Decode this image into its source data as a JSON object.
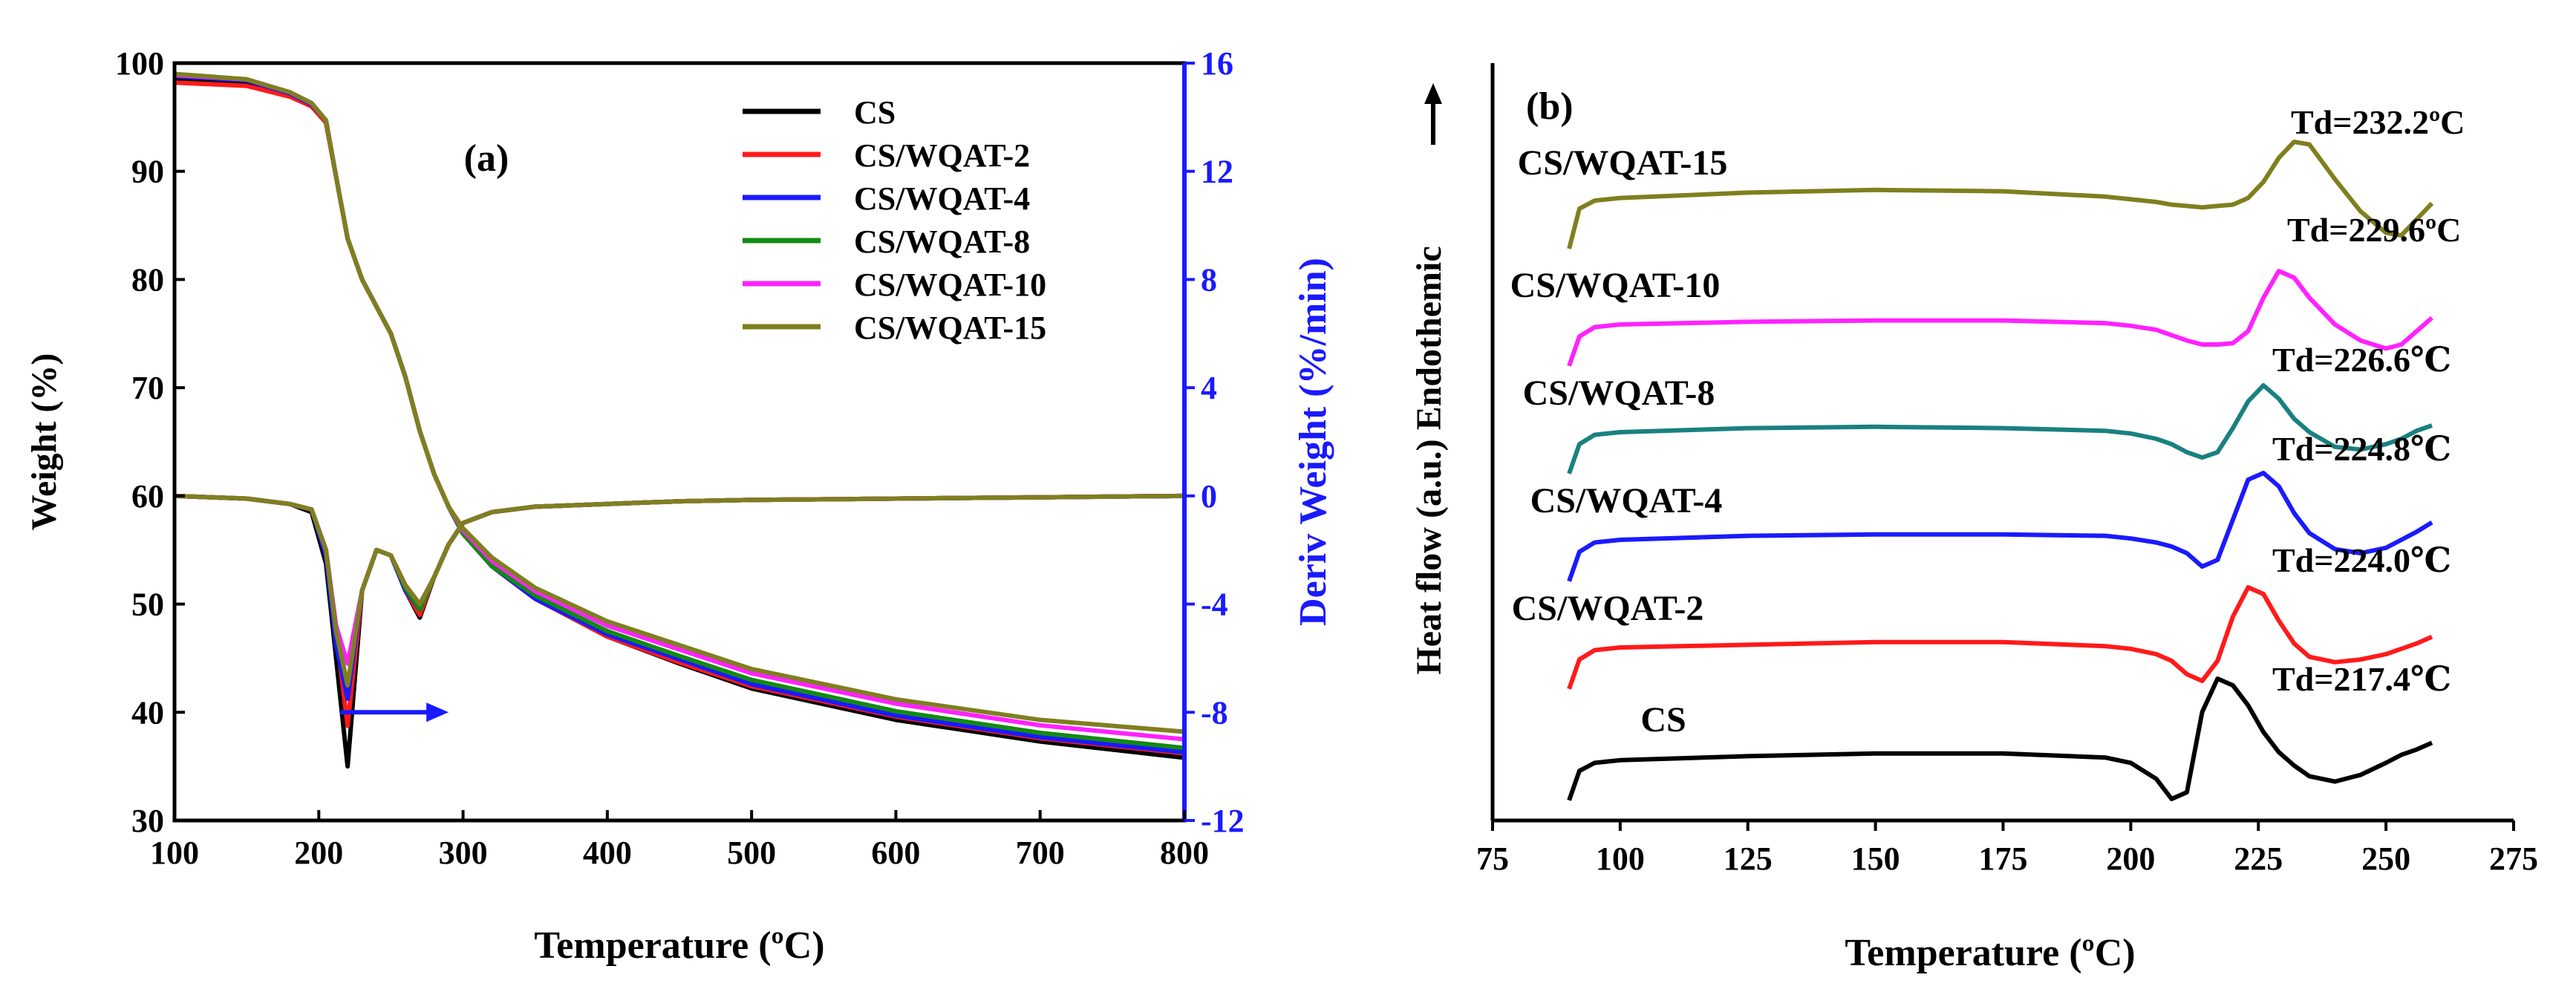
{
  "chart_data": [
    {
      "panel_label": "(a)",
      "type": "line",
      "xlabel": "Temperature (ºC)",
      "ylabel": "Weight (%)",
      "y2label": "Deriv Weight (%/min)",
      "xlim": [
        100,
        800
      ],
      "ylim": [
        30,
        100
      ],
      "y2lim": [
        -12,
        16
      ],
      "xticks": [
        100,
        200,
        300,
        400,
        500,
        600,
        700,
        800
      ],
      "yticks": [
        30,
        40,
        50,
        60,
        70,
        80,
        90,
        100
      ],
      "y2ticks": [
        -12,
        -8,
        -4,
        0,
        4,
        8,
        12,
        16
      ],
      "x": [
        100,
        150,
        180,
        195,
        205,
        212,
        220,
        230,
        240,
        250,
        260,
        270,
        280,
        290,
        300,
        320,
        350,
        400,
        450,
        500,
        600,
        700,
        800
      ],
      "series": [
        {
          "name": "CS",
          "color": "#000000",
          "weight": [
            98.6,
            98.1,
            97.0,
            96.0,
            94.5,
            89.5,
            83.8,
            80.0,
            77.5,
            75.0,
            71.0,
            66.0,
            62.0,
            59.0,
            56.5,
            53.5,
            50.5,
            47.0,
            44.5,
            42.2,
            39.3,
            37.3,
            35.8
          ],
          "deriv": [
            0,
            -0.1,
            -0.3,
            -0.6,
            -2.5,
            -6.0,
            -10.0,
            -3.5,
            -2.0,
            -2.2,
            -3.5,
            -4.5,
            -3.0,
            -1.8,
            -1.0,
            -0.6,
            -0.4,
            -0.3,
            -0.2,
            -0.15,
            -0.1,
            -0.05,
            0
          ]
        },
        {
          "name": "CS/WQAT-2",
          "color": "#ff1a1a",
          "weight": [
            98.2,
            97.9,
            96.9,
            96.0,
            94.5,
            89.5,
            83.8,
            80.0,
            77.5,
            75.0,
            71.0,
            66.0,
            62.0,
            59.0,
            56.5,
            53.5,
            50.5,
            47.0,
            44.6,
            42.4,
            39.6,
            37.6,
            36.2
          ],
          "deriv": [
            0,
            -0.1,
            -0.3,
            -0.5,
            -2.0,
            -5.0,
            -8.5,
            -3.5,
            -2.0,
            -2.2,
            -3.5,
            -4.4,
            -3.0,
            -1.8,
            -1.0,
            -0.6,
            -0.4,
            -0.3,
            -0.2,
            -0.15,
            -0.1,
            -0.05,
            0
          ]
        },
        {
          "name": "CS/WQAT-4",
          "color": "#1a1aff",
          "weight": [
            98.8,
            98.4,
            97.2,
            96.2,
            94.7,
            89.5,
            83.8,
            80.0,
            77.5,
            75.0,
            71.0,
            66.0,
            62.0,
            59.0,
            56.5,
            53.5,
            50.5,
            47.2,
            44.9,
            42.6,
            39.7,
            37.7,
            36.3
          ],
          "deriv": [
            0,
            -0.1,
            -0.3,
            -0.5,
            -2.2,
            -5.5,
            -7.5,
            -3.5,
            -2.0,
            -2.2,
            -3.5,
            -4.2,
            -3.0,
            -1.8,
            -1.0,
            -0.6,
            -0.4,
            -0.3,
            -0.2,
            -0.15,
            -0.1,
            -0.05,
            0
          ]
        },
        {
          "name": "CS/WQAT-8",
          "color": "#138a13",
          "weight": [
            99.0,
            98.5,
            97.3,
            96.3,
            94.7,
            89.5,
            83.8,
            80.0,
            77.5,
            75.0,
            71.0,
            66.0,
            62.0,
            59.0,
            56.5,
            53.5,
            50.8,
            47.5,
            45.2,
            43.0,
            40.1,
            38.1,
            36.7
          ],
          "deriv": [
            0,
            -0.1,
            -0.3,
            -0.5,
            -2.0,
            -5.0,
            -7.0,
            -3.5,
            -2.0,
            -2.2,
            -3.4,
            -4.2,
            -3.0,
            -1.8,
            -1.0,
            -0.6,
            -0.4,
            -0.3,
            -0.2,
            -0.15,
            -0.1,
            -0.05,
            0
          ]
        },
        {
          "name": "CS/WQAT-10",
          "color": "#ff22ff",
          "weight": [
            98.9,
            98.5,
            97.3,
            96.3,
            94.7,
            89.5,
            83.8,
            80.0,
            77.5,
            75.0,
            71.0,
            66.0,
            62.0,
            59.0,
            56.8,
            54.0,
            51.2,
            48.0,
            45.8,
            43.6,
            40.8,
            38.8,
            37.5
          ],
          "deriv": [
            0,
            -0.1,
            -0.3,
            -0.5,
            -2.0,
            -4.8,
            -6.2,
            -3.5,
            -2.0,
            -2.2,
            -3.3,
            -4.0,
            -3.0,
            -1.8,
            -1.0,
            -0.6,
            -0.4,
            -0.3,
            -0.2,
            -0.15,
            -0.1,
            -0.05,
            0
          ]
        },
        {
          "name": "CS/WQAT-15",
          "color": "#7f7f1f",
          "weight": [
            99.0,
            98.5,
            97.3,
            96.3,
            94.7,
            89.5,
            83.8,
            80.0,
            77.5,
            75.0,
            71.0,
            66.0,
            62.0,
            59.0,
            57.0,
            54.3,
            51.5,
            48.4,
            46.2,
            44.0,
            41.2,
            39.3,
            38.2
          ],
          "deriv": [
            0,
            -0.1,
            -0.3,
            -0.5,
            -2.0,
            -5.0,
            -7.0,
            -3.5,
            -2.0,
            -2.2,
            -3.3,
            -4.0,
            -3.0,
            -1.8,
            -1.0,
            -0.6,
            -0.4,
            -0.3,
            -0.2,
            -0.15,
            -0.1,
            -0.05,
            0
          ]
        }
      ],
      "arrow": {
        "from": [
          215,
          -8
        ],
        "to": [
          290,
          -8
        ],
        "color": "#1a1aff"
      },
      "legend_position": "top-right"
    },
    {
      "panel_label": "(b)",
      "type": "line",
      "xlabel": "Temperature (ºC)",
      "ylabel": "Heat flow (a.u.) Endothemic",
      "xlim": [
        75,
        275
      ],
      "xticks": [
        75,
        100,
        125,
        150,
        175,
        200,
        225,
        250,
        275
      ],
      "x": [
        90,
        92,
        95,
        100,
        125,
        150,
        175,
        195,
        200,
        205,
        208,
        211,
        214,
        217,
        220,
        223,
        226,
        229,
        232,
        235,
        240,
        245,
        250,
        253,
        256,
        259
      ],
      "series": [
        {
          "name": "CS",
          "color": "#000000",
          "td": "Td=217.4℃",
          "y": [
            0.4,
            2.6,
            3.2,
            3.4,
            3.7,
            3.9,
            3.9,
            3.6,
            3.2,
            2.0,
            0.5,
            1.0,
            7.0,
            9.5,
            9.0,
            7.5,
            5.5,
            4.0,
            3.0,
            2.2,
            1.8,
            2.3,
            3.2,
            3.8,
            4.2,
            4.7
          ]
        },
        {
          "name": "CS/WQAT-2",
          "color": "#ff1a1a",
          "td": "Td=224.0℃",
          "y": [
            0.4,
            2.6,
            3.3,
            3.5,
            3.7,
            3.9,
            3.9,
            3.6,
            3.4,
            3.0,
            2.5,
            1.5,
            1.0,
            2.5,
            5.8,
            8.0,
            7.5,
            5.5,
            3.8,
            2.8,
            2.4,
            2.6,
            3.0,
            3.4,
            3.8,
            4.3
          ]
        },
        {
          "name": "CS/WQAT-4",
          "color": "#1a1aff",
          "td": "Td=224.8℃",
          "y": [
            0.4,
            2.6,
            3.3,
            3.5,
            3.8,
            3.9,
            3.9,
            3.8,
            3.6,
            3.3,
            3.0,
            2.5,
            1.5,
            2.0,
            5.0,
            8.0,
            8.5,
            7.5,
            5.5,
            4.0,
            2.8,
            2.5,
            2.9,
            3.5,
            4.1,
            4.8
          ]
        },
        {
          "name": "CS/WQAT-8",
          "color": "#138a13",
          "display_color": "#1a8080",
          "td": "Td=226.6℃",
          "y": [
            0.4,
            2.6,
            3.3,
            3.5,
            3.8,
            3.9,
            3.8,
            3.6,
            3.4,
            3.0,
            2.6,
            2.0,
            1.6,
            2.0,
            3.8,
            5.8,
            7.0,
            6.0,
            4.5,
            3.5,
            2.4,
            2.2,
            2.6,
            3.0,
            3.6,
            4.0
          ]
        },
        {
          "name": "CS/WQAT-10",
          "color": "#ff22ff",
          "td": "Td=229.6ºC",
          "y": [
            0.4,
            2.6,
            3.3,
            3.5,
            3.7,
            3.8,
            3.8,
            3.6,
            3.4,
            3.1,
            2.7,
            2.3,
            2.0,
            2.0,
            2.1,
            3.0,
            5.5,
            7.5,
            7.0,
            5.5,
            3.5,
            2.3,
            1.7,
            2.0,
            3.0,
            4.0
          ]
        },
        {
          "name": "CS/WQAT-15",
          "color": "#7f7f1f",
          "td": "Td=232.2ºC",
          "y": [
            0.0,
            3.0,
            3.6,
            3.8,
            4.2,
            4.4,
            4.3,
            3.9,
            3.7,
            3.5,
            3.3,
            3.2,
            3.1,
            3.2,
            3.3,
            3.8,
            5.0,
            6.8,
            8.0,
            7.8,
            5.2,
            2.8,
            1.2,
            1.0,
            2.2,
            3.4
          ]
        }
      ]
    }
  ]
}
